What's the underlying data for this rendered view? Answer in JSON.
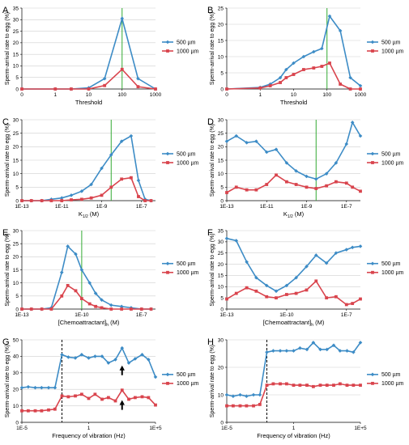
{
  "colors": {
    "series_500": "#3d8cc6",
    "series_1000": "#d9444d",
    "green_line": "#33aa33",
    "grid": "#cfcfcf"
  },
  "chart_data": [
    {
      "panel": "A",
      "type": "line",
      "xscale": "log",
      "xlabel": "Threshold",
      "ylabel": "Sperm-arrival rate to egg (%)",
      "xlim": [
        0,
        1000
      ],
      "ylim": [
        0,
        35
      ],
      "xticks": [
        {
          "v": 0,
          "label": "0"
        },
        {
          "v": 1,
          "label": "1"
        },
        {
          "v": 10,
          "label": "10"
        },
        {
          "v": 100,
          "label": "100"
        },
        {
          "v": 1000,
          "label": "1000"
        }
      ],
      "yticks": [
        0,
        5,
        10,
        15,
        20,
        25,
        30,
        35
      ],
      "vline": 100,
      "series": [
        {
          "name": "500 µm",
          "x": [
            0,
            1,
            3,
            10,
            30,
            100,
            300,
            1000
          ],
          "y": [
            0,
            0,
            0,
            0.5,
            4.5,
            30.5,
            4.5,
            0
          ]
        },
        {
          "name": "1000 µm",
          "x": [
            0,
            1,
            3,
            10,
            30,
            100,
            300,
            1000
          ],
          "y": [
            0,
            0,
            0,
            0,
            1.5,
            8.5,
            1,
            0
          ]
        }
      ]
    },
    {
      "panel": "B",
      "type": "line",
      "xscale": "log",
      "xlabel": "Threshold",
      "ylabel": "Sperm-arrival rate to egg (%)",
      "xlim": [
        0,
        1000
      ],
      "ylim": [
        0,
        25
      ],
      "xticks": [
        {
          "v": 0,
          "label": "0"
        },
        {
          "v": 1,
          "label": "1"
        },
        {
          "v": 10,
          "label": "10"
        },
        {
          "v": 100,
          "label": "100"
        },
        {
          "v": 1000,
          "label": "1000"
        }
      ],
      "yticks": [
        0,
        5,
        10,
        15,
        20,
        25
      ],
      "vline": 100,
      "series": [
        {
          "name": "500 µm",
          "x": [
            0,
            1,
            2,
            4,
            6,
            10,
            20,
            40,
            70,
            120,
            250,
            500,
            1000
          ],
          "y": [
            0,
            0.5,
            1.5,
            3.5,
            6,
            8,
            10,
            11.5,
            12.5,
            22.5,
            18,
            3.5,
            1
          ]
        },
        {
          "name": "1000 µm",
          "x": [
            0,
            1,
            2,
            4,
            6,
            10,
            20,
            40,
            70,
            120,
            250,
            500,
            1000
          ],
          "y": [
            0,
            0.3,
            1,
            2,
            3.5,
            4.5,
            6,
            6.5,
            7,
            8,
            1.5,
            0,
            0
          ]
        }
      ]
    },
    {
      "panel": "C",
      "type": "line",
      "xscale": "log",
      "xlabel": "K1/2 (M)",
      "ylabel": "Sperm-arrival rate to egg (%)",
      "xlim": [
        1e-13,
        5e-07
      ],
      "ylim": [
        0,
        30
      ],
      "xticks": [
        {
          "v": 1e-13,
          "label": "1E-13"
        },
        {
          "v": 1e-11,
          "label": "1E-11"
        },
        {
          "v": 1e-09,
          "label": "1E-9"
        },
        {
          "v": 1e-07,
          "label": "1E-7"
        }
      ],
      "yticks": [
        0,
        5,
        10,
        15,
        20,
        25,
        30
      ],
      "vline": 3e-09,
      "series": [
        {
          "name": "500 µm",
          "x": [
            1e-13,
            3e-13,
            1e-12,
            3e-12,
            1e-11,
            3e-11,
            1e-10,
            3e-10,
            1e-09,
            3e-09,
            1e-08,
            3e-08,
            7e-08,
            1.5e-07,
            3e-07
          ],
          "y": [
            0,
            0,
            0,
            0.5,
            1,
            2,
            3.5,
            6,
            12,
            17,
            22,
            24,
            7.5,
            0.5,
            0
          ]
        },
        {
          "name": "1000 µm",
          "x": [
            1e-13,
            3e-13,
            1e-12,
            3e-12,
            1e-11,
            3e-11,
            1e-10,
            3e-10,
            1e-09,
            3e-09,
            1e-08,
            3e-08,
            7e-08,
            1.5e-07,
            3e-07
          ],
          "y": [
            0,
            0,
            0,
            0,
            0,
            0.3,
            0.5,
            1,
            2,
            5,
            8,
            8.5,
            1.5,
            0,
            0
          ]
        }
      ]
    },
    {
      "panel": "D",
      "type": "line",
      "xscale": "log",
      "xlabel": "K1/2 (M)",
      "ylabel": "Sperm-arrival rate to egg (%)",
      "xlim": [
        1e-13,
        5e-07
      ],
      "ylim": [
        0,
        30
      ],
      "xticks": [
        {
          "v": 1e-13,
          "label": "1E-13"
        },
        {
          "v": 1e-11,
          "label": "1E-11"
        },
        {
          "v": 1e-09,
          "label": "1E-9"
        },
        {
          "v": 1e-07,
          "label": "1E-7"
        }
      ],
      "yticks": [
        0,
        5,
        10,
        15,
        20,
        25,
        30
      ],
      "vline": 3e-09,
      "series": [
        {
          "name": "500 µm",
          "x": [
            1e-13,
            3e-13,
            1e-12,
            3e-12,
            1e-11,
            3e-11,
            1e-10,
            3e-10,
            1e-09,
            3e-09,
            1e-08,
            3e-08,
            1e-07,
            2e-07,
            5e-07
          ],
          "y": [
            22,
            24,
            21.5,
            22,
            18,
            19,
            14,
            11,
            9,
            8,
            10,
            14,
            21,
            29,
            24
          ]
        },
        {
          "name": "1000 µm",
          "x": [
            1e-13,
            3e-13,
            1e-12,
            3e-12,
            1e-11,
            3e-11,
            1e-10,
            3e-10,
            1e-09,
            3e-09,
            1e-08,
            3e-08,
            1e-07,
            2e-07,
            5e-07
          ],
          "y": [
            3,
            5,
            4,
            4,
            6,
            9.5,
            7,
            6,
            5,
            4.5,
            5.5,
            7,
            6.5,
            5,
            3.5
          ]
        }
      ]
    },
    {
      "panel": "E",
      "type": "line",
      "xscale": "log",
      "xlabel": "[Chemoattractant]h (M)",
      "ylabel": "Sperm-arrival rate to egg (%)",
      "xlim": [
        1e-13,
        5e-07
      ],
      "ylim": [
        0,
        30
      ],
      "xticks": [
        {
          "v": 1e-13,
          "label": "1E-13"
        },
        {
          "v": 1e-10,
          "label": "1E-10"
        },
        {
          "v": 1e-07,
          "label": "1E-7"
        }
      ],
      "yticks": [
        0,
        5,
        10,
        15,
        20,
        25,
        30
      ],
      "vline": 1e-10,
      "series": [
        {
          "name": "500 µm",
          "x": [
            1e-13,
            3e-13,
            1e-12,
            3e-12,
            1e-11,
            2e-11,
            5e-11,
            1e-10,
            2.5e-10,
            5e-10,
            1e-09,
            3e-09,
            1e-08,
            3e-08,
            1e-07,
            3e-07
          ],
          "y": [
            0,
            0,
            0,
            0.5,
            14,
            24,
            21,
            15,
            10,
            6,
            3.5,
            1.5,
            1,
            0.5,
            0,
            0
          ]
        },
        {
          "name": "1000 µm",
          "x": [
            1e-13,
            3e-13,
            1e-12,
            3e-12,
            1e-11,
            2e-11,
            5e-11,
            1e-10,
            2.5e-10,
            5e-10,
            1e-09,
            3e-09,
            1e-08,
            3e-08,
            1e-07,
            3e-07
          ],
          "y": [
            0,
            0,
            0,
            0,
            5,
            9,
            7,
            4,
            2,
            1,
            0.5,
            0,
            0,
            0,
            0,
            0
          ]
        }
      ]
    },
    {
      "panel": "F",
      "type": "line",
      "xscale": "log",
      "xlabel": "[Chemoattractant]h (M)",
      "ylabel": "Sperm-arrival rate to egg (%)",
      "xlim": [
        1e-13,
        5e-07
      ],
      "ylim": [
        0,
        35
      ],
      "xticks": [
        {
          "v": 1e-13,
          "label": "1E-13"
        },
        {
          "v": 1e-10,
          "label": "1E-10"
        },
        {
          "v": 1e-07,
          "label": "1E-7"
        }
      ],
      "yticks": [
        0,
        5,
        10,
        15,
        20,
        25,
        30,
        35
      ],
      "series": [
        {
          "name": "500 µm",
          "x": [
            1e-13,
            3e-13,
            1e-12,
            3e-12,
            1e-11,
            3e-11,
            1e-10,
            3e-10,
            1e-09,
            3e-09,
            1e-08,
            3e-08,
            1e-07,
            2e-07,
            5e-07
          ],
          "y": [
            31.5,
            30.5,
            21,
            14,
            10.5,
            8,
            10.5,
            14,
            19,
            24,
            20.5,
            25,
            26.5,
            27.5,
            28
          ]
        },
        {
          "name": "1000 µm",
          "x": [
            1e-13,
            3e-13,
            1e-12,
            3e-12,
            1e-11,
            3e-11,
            1e-10,
            3e-10,
            1e-09,
            3e-09,
            1e-08,
            3e-08,
            1e-07,
            2e-07,
            5e-07
          ],
          "y": [
            4.5,
            7,
            9.5,
            8,
            5.5,
            5,
            6.5,
            7,
            8.5,
            12.5,
            5,
            5.5,
            2,
            2.5,
            4.5
          ]
        }
      ]
    },
    {
      "panel": "G",
      "type": "line",
      "xscale": "log",
      "xlabel": "Frequency of vibration (Hz)",
      "ylabel": "Sperm-arrival rate to egg (%)",
      "xlim": [
        1e-05,
        100000.0
      ],
      "ylim": [
        0,
        50
      ],
      "xticks": [
        {
          "v": 1e-05,
          "label": "1E-5"
        },
        {
          "v": 1,
          "label": "1"
        },
        {
          "v": 100000.0,
          "label": "1E+5"
        }
      ],
      "yticks": [
        0,
        10,
        20,
        30,
        40,
        50
      ],
      "dashed_vline": 0.01,
      "arrows": [
        {
          "x": 316,
          "y": 32
        },
        {
          "x": 316,
          "y": 11
        }
      ],
      "series": [
        {
          "name": "500 µm",
          "x": [
            1e-05,
            3e-05,
            0.0001,
            0.0003,
            0.001,
            0.003,
            0.01,
            0.03,
            0.1,
            0.3,
            1,
            3,
            10,
            30,
            100,
            316,
            1000,
            3000,
            10000.0,
            30000.0,
            100000.0
          ],
          "y": [
            21,
            21.5,
            21,
            21,
            21,
            21,
            41,
            39.5,
            39,
            41,
            39,
            40,
            40,
            36,
            38,
            45,
            36,
            38.5,
            41,
            38,
            27.5
          ]
        },
        {
          "name": "1000 µm",
          "x": [
            1e-05,
            3e-05,
            0.0001,
            0.0003,
            0.001,
            0.003,
            0.01,
            0.03,
            0.1,
            0.3,
            1,
            3,
            10,
            30,
            100,
            316,
            1000,
            3000,
            10000.0,
            30000.0,
            100000.0
          ],
          "y": [
            7,
            7,
            7,
            7,
            7.5,
            8,
            16,
            15.5,
            16,
            17,
            14.5,
            17,
            14,
            15,
            13,
            19.5,
            14,
            15,
            15.5,
            15,
            10.5
          ]
        }
      ]
    },
    {
      "panel": "H",
      "type": "line",
      "xscale": "log",
      "xlabel": "Frequency of vibration (Hz)",
      "ylabel": "Sperm-arrival rate to egg (%)",
      "xlim": [
        1e-05,
        100000.0
      ],
      "ylim": [
        0,
        30
      ],
      "xticks": [
        {
          "v": 1e-05,
          "label": "1E-5"
        },
        {
          "v": 1,
          "label": "1"
        },
        {
          "v": 100000.0,
          "label": "1E+5"
        }
      ],
      "yticks": [
        0,
        10,
        20,
        30
      ],
      "dashed_vline": 0.01,
      "series": [
        {
          "name": "500 µm",
          "x": [
            1e-05,
            3e-05,
            0.0001,
            0.0003,
            0.001,
            0.003,
            0.01,
            0.03,
            0.1,
            0.3,
            1,
            3,
            10,
            30,
            100,
            316,
            1000,
            3000,
            10000.0,
            30000.0,
            100000.0
          ],
          "y": [
            10,
            9.5,
            10,
            9.5,
            10,
            10,
            25.5,
            26,
            26,
            26,
            26,
            27,
            26.5,
            29,
            26.5,
            26.5,
            28,
            26,
            26,
            25.5,
            29
          ]
        },
        {
          "name": "1000 µm",
          "x": [
            1e-05,
            3e-05,
            0.0001,
            0.0003,
            0.001,
            0.003,
            0.01,
            0.03,
            0.1,
            0.3,
            1,
            3,
            10,
            30,
            100,
            316,
            1000,
            3000,
            10000.0,
            30000.0,
            100000.0
          ],
          "y": [
            6,
            6,
            6,
            6,
            6,
            6.5,
            13.5,
            14,
            14,
            14,
            13.5,
            13.5,
            13.5,
            13,
            13.5,
            13.5,
            13.5,
            14,
            13.5,
            13.5,
            13.5
          ]
        }
      ]
    }
  ]
}
